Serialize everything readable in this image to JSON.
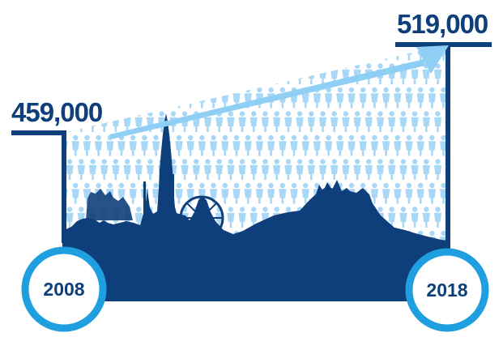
{
  "colors": {
    "dark_blue": "#0f3f7a",
    "mid_blue": "#1f9ee0",
    "light_blue": "#8fcff5",
    "person_blue": "#a9d7f6",
    "white": "#ffffff"
  },
  "icons": {
    "person": "person-icon",
    "skyline": "edinburgh-skyline-silhouette",
    "arrow": "growth-arrow"
  },
  "chart_data": {
    "type": "area",
    "title": "",
    "xlabel": "",
    "ylabel": "",
    "categories": [
      "2008",
      "2018"
    ],
    "values": [
      459000,
      519000
    ],
    "value_labels": [
      "459,000",
      "519,000"
    ],
    "x": [
      2008,
      2018
    ],
    "grid": false,
    "legend": "none"
  }
}
